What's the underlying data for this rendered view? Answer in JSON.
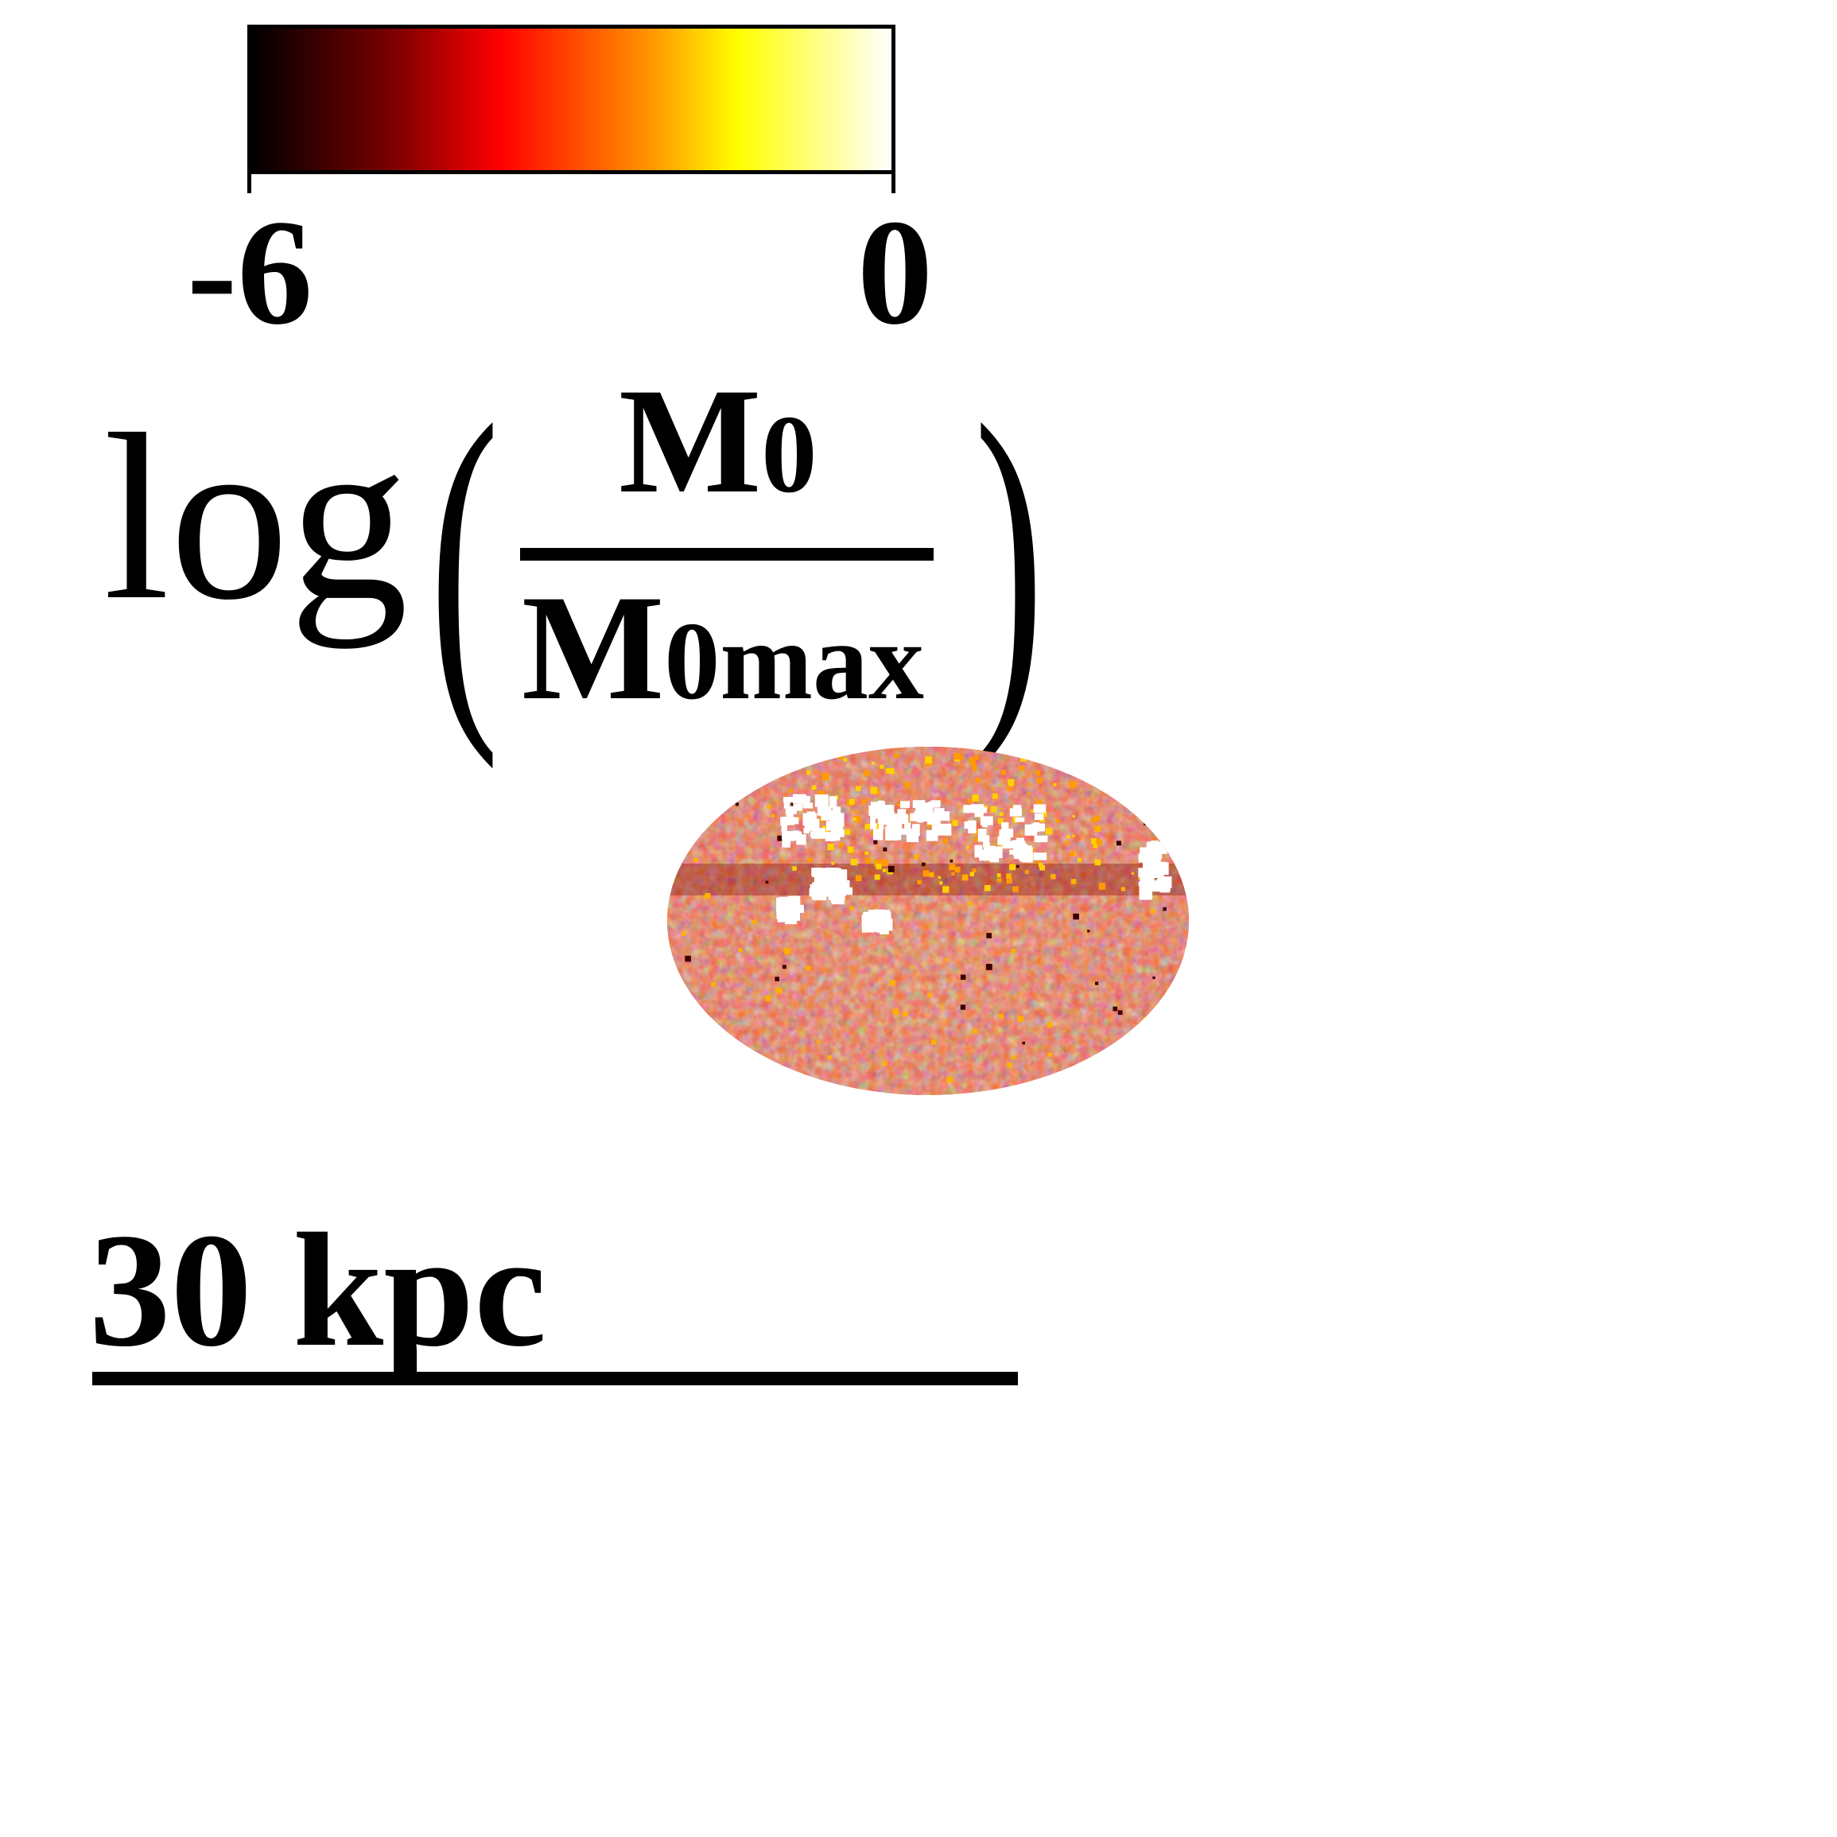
{
  "colorbar": {
    "min_label": "-6",
    "max_label": "0",
    "colors": [
      "#000000",
      "#7a0000",
      "#ff0000",
      "#ff9a00",
      "#ffff00",
      "#ffffff"
    ]
  },
  "formula": {
    "log": "log",
    "left_paren": "(",
    "right_paren": ")",
    "numerator_main": "M",
    "numerator_sub": "0",
    "denominator_main": "M",
    "denominator_sub": "0max"
  },
  "scale": {
    "label": "30 kpc"
  }
}
